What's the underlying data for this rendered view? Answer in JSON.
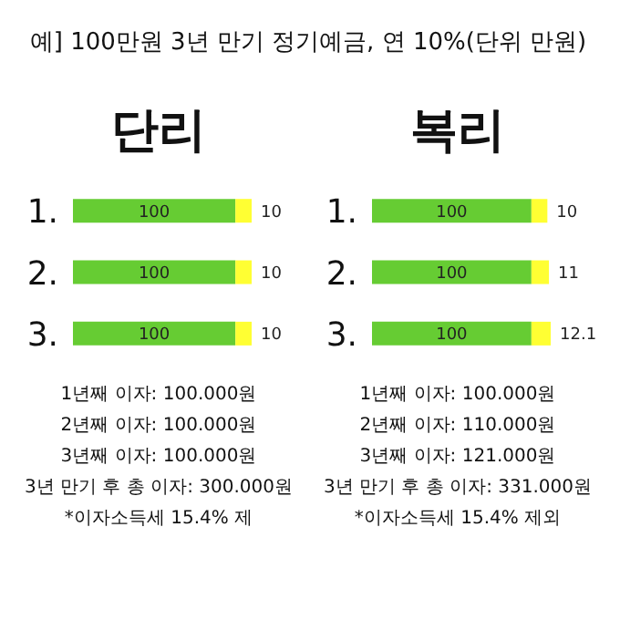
{
  "chart_data": [
    {
      "type": "bar",
      "orientation": "horizontal",
      "stacked": true,
      "title": "예] 100만원 3년 만기 정기예금, 연 10%(단위 만원)",
      "subtitle": "단리",
      "categories": [
        "1.",
        "2.",
        "3."
      ],
      "series": [
        {
          "color": "#66cc33",
          "values": [
            100,
            100,
            100
          ]
        },
        {
          "color": "#ffff33",
          "values": [
            10,
            10,
            10
          ]
        }
      ],
      "data_labels": true,
      "tick_labels": "y",
      "annotations": [
        "1년째 이자: 100.000원",
        "2년째 이자: 100.000원",
        "3년째 이자: 100.000원",
        "3년 만기 후 총 이자: 300.000원",
        "*이자소득세 15.4% 제"
      ]
    },
    {
      "type": "bar",
      "orientation": "horizontal",
      "stacked": true,
      "subtitle": "복리",
      "categories": [
        "1.",
        "2.",
        "3."
      ],
      "series": [
        {
          "color": "#66cc33",
          "values": [
            100,
            100,
            100
          ]
        },
        {
          "color": "#ffff33",
          "values": [
            10,
            11,
            12.1
          ]
        }
      ],
      "data_labels": true,
      "tick_labels": "y",
      "annotations": [
        "1년째 이자: 100.000원",
        "2년째 이자: 110.000원",
        "3년째 이자: 121.000원",
        "3년 만기 후 총 이자: 331.000원",
        "*이자소득세 15.4% 제외"
      ]
    }
  ]
}
